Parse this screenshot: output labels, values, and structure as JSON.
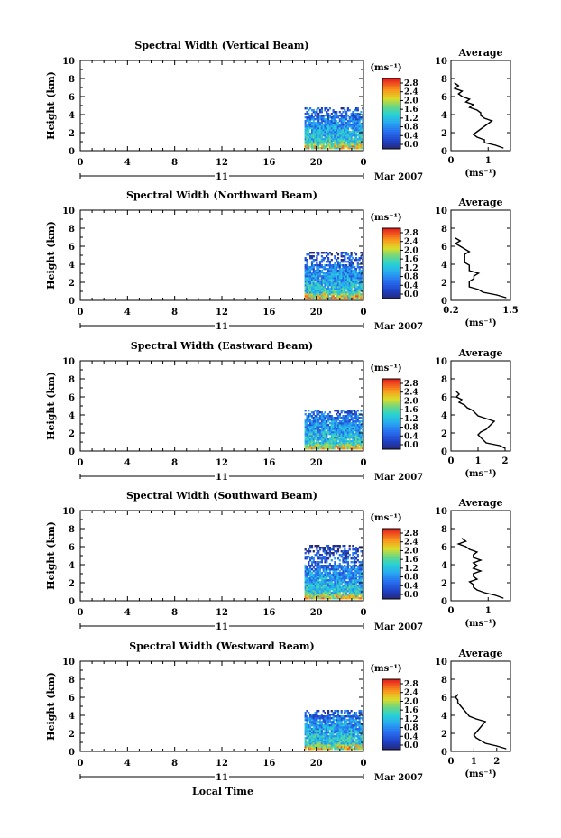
{
  "chart_data": [
    {
      "type": "heatmap",
      "title": "Spectral Width (Vertical Beam)",
      "ylabel": "Height (km)",
      "unit_label": "(ms⁻¹)",
      "xlim": [
        0,
        24
      ],
      "ylim": [
        0,
        10
      ],
      "x_ticks": [
        "0",
        "4",
        "8",
        "12",
        "16",
        "20",
        "0"
      ],
      "y_ticks": [
        "0",
        "2",
        "4",
        "6",
        "8",
        "10"
      ],
      "date_label": "11",
      "month_label": "Mar 2007",
      "colorbar_ticks": [
        "0.0",
        "0.4",
        "0.8",
        "1.2",
        "1.6",
        "2.0",
        "2.4",
        "2.8"
      ],
      "data_time_range": [
        19,
        24
      ],
      "data_height_range": [
        0.2,
        4.8
      ],
      "average": {
        "title": "Average",
        "xlabel": "(ms⁻¹)",
        "xlim": [
          0,
          1.6
        ],
        "x_ticks": [
          "0",
          "1"
        ],
        "height": [
          0.3,
          0.6,
          0.9,
          1.2,
          1.5,
          1.8,
          2.1,
          2.4,
          2.7,
          3.0,
          3.3,
          3.6,
          3.9,
          4.2,
          4.5,
          4.8,
          5.1,
          5.4,
          5.7,
          6.0,
          6.3,
          6.6,
          6.9,
          7.2,
          7.5
        ],
        "value": [
          1.4,
          1.2,
          0.9,
          0.9,
          0.7,
          0.6,
          0.7,
          0.8,
          0.9,
          1.0,
          1.1,
          0.9,
          0.8,
          0.8,
          0.7,
          0.5,
          0.6,
          0.4,
          0.5,
          0.3,
          0.2,
          0.3,
          0.1,
          0.2,
          0.1
        ]
      }
    },
    {
      "type": "heatmap",
      "title": "Spectral Width (Northward Beam)",
      "ylabel": "Height (km)",
      "unit_label": "(ms⁻¹)",
      "xlim": [
        0,
        24
      ],
      "ylim": [
        0,
        10
      ],
      "x_ticks": [
        "0",
        "4",
        "8",
        "12",
        "16",
        "20",
        "0"
      ],
      "y_ticks": [
        "0",
        "2",
        "4",
        "6",
        "8",
        "10"
      ],
      "date_label": "11",
      "month_label": "Mar 2007",
      "colorbar_ticks": [
        "0.0",
        "0.4",
        "0.8",
        "1.2",
        "1.6",
        "2.0",
        "2.4",
        "2.8"
      ],
      "data_time_range": [
        19,
        24
      ],
      "data_height_range": [
        0.2,
        5.4
      ],
      "average": {
        "title": "Average",
        "xlabel": "(ms⁻¹)",
        "xlim": [
          0.2,
          1.5
        ],
        "x_ticks": [
          "0.2",
          "1.5"
        ],
        "height": [
          0.3,
          0.6,
          0.9,
          1.2,
          1.5,
          1.8,
          2.1,
          2.4,
          2.7,
          3.0,
          3.3,
          3.6,
          3.9,
          4.2,
          4.5,
          4.8,
          5.1,
          5.4,
          5.7,
          6.0,
          6.3,
          6.6,
          6.9
        ],
        "value": [
          1.4,
          1.2,
          0.9,
          0.8,
          0.6,
          0.6,
          0.6,
          0.7,
          0.7,
          0.8,
          0.6,
          0.6,
          0.6,
          0.5,
          0.5,
          0.5,
          0.5,
          0.6,
          0.5,
          0.4,
          0.3,
          0.4,
          0.3
        ]
      }
    },
    {
      "type": "heatmap",
      "title": "Spectral Width (Eastward Beam)",
      "ylabel": "Height (km)",
      "unit_label": "(ms⁻¹)",
      "xlim": [
        0,
        24
      ],
      "ylim": [
        0,
        10
      ],
      "x_ticks": [
        "0",
        "4",
        "8",
        "12",
        "16",
        "20",
        "0"
      ],
      "y_ticks": [
        "0",
        "2",
        "4",
        "6",
        "8",
        "10"
      ],
      "date_label": "11",
      "month_label": "Mar 2007",
      "colorbar_ticks": [
        "0.0",
        "0.4",
        "0.8",
        "1.2",
        "1.6",
        "2.0",
        "2.4",
        "2.8"
      ],
      "data_time_range": [
        19,
        24
      ],
      "data_height_range": [
        0.2,
        4.6
      ],
      "average": {
        "title": "Average",
        "xlabel": "(ms⁻¹)",
        "xlim": [
          0,
          2.2
        ],
        "x_ticks": [
          "0",
          "1",
          "2"
        ],
        "height": [
          0.3,
          0.6,
          0.9,
          1.2,
          1.5,
          1.8,
          2.1,
          2.4,
          2.7,
          3.0,
          3.3,
          3.6,
          3.9,
          4.2,
          4.5,
          4.8,
          5.1,
          5.4,
          5.7,
          6.0,
          6.3,
          6.6
        ],
        "value": [
          2.0,
          1.8,
          1.3,
          1.2,
          1.1,
          1.0,
          1.1,
          1.3,
          1.4,
          1.5,
          1.6,
          1.3,
          1.0,
          0.9,
          0.8,
          0.6,
          0.5,
          0.3,
          0.4,
          0.2,
          0.3,
          0.2
        ]
      }
    },
    {
      "type": "heatmap",
      "title": "Spectral Width (Southward Beam)",
      "ylabel": "Height (km)",
      "unit_label": "(ms⁻¹)",
      "xlim": [
        0,
        24
      ],
      "ylim": [
        0,
        10
      ],
      "x_ticks": [
        "0",
        "4",
        "8",
        "12",
        "16",
        "20",
        "0"
      ],
      "y_ticks": [
        "0",
        "2",
        "4",
        "6",
        "8",
        "10"
      ],
      "date_label": "11",
      "month_label": "Mar 2007",
      "colorbar_ticks": [
        "0.0",
        "0.4",
        "0.8",
        "1.2",
        "1.6",
        "2.0",
        "2.4",
        "2.8"
      ],
      "data_time_range": [
        19,
        24
      ],
      "data_height_range": [
        0.2,
        6.2
      ],
      "average": {
        "title": "Average",
        "xlabel": "(ms⁻¹)",
        "xlim": [
          0,
          1.6
        ],
        "x_ticks": [
          "0",
          "1"
        ],
        "height": [
          0.3,
          0.6,
          0.9,
          1.2,
          1.5,
          1.8,
          2.1,
          2.4,
          2.7,
          3.0,
          3.3,
          3.6,
          3.9,
          4.2,
          4.5,
          4.8,
          5.1,
          5.4,
          5.7,
          6.0,
          6.3,
          6.6,
          6.9
        ],
        "value": [
          1.4,
          1.2,
          0.9,
          0.7,
          0.6,
          0.6,
          0.5,
          0.7,
          0.6,
          0.6,
          0.8,
          0.6,
          0.7,
          0.6,
          0.8,
          0.6,
          0.6,
          0.7,
          0.5,
          0.4,
          0.2,
          0.4,
          0.3
        ]
      }
    },
    {
      "type": "heatmap",
      "title": "Spectral Width (Westward Beam)",
      "ylabel": "Height (km)",
      "unit_label": "(ms⁻¹)",
      "xlim": [
        0,
        24
      ],
      "ylim": [
        0,
        10
      ],
      "x_ticks": [
        "0",
        "4",
        "8",
        "12",
        "16",
        "20",
        "0"
      ],
      "y_ticks": [
        "0",
        "2",
        "4",
        "6",
        "8",
        "10"
      ],
      "date_label": "11",
      "month_label": "Mar 2007",
      "xlabel": "Local Time",
      "colorbar_ticks": [
        "0.0",
        "0.4",
        "0.8",
        "1.2",
        "1.6",
        "2.0",
        "2.4",
        "2.8"
      ],
      "data_time_range": [
        19,
        24
      ],
      "data_height_range": [
        0.2,
        4.6
      ],
      "average": {
        "title": "Average",
        "xlabel": "(ms⁻¹)",
        "xlim": [
          0,
          2.6
        ],
        "x_ticks": [
          "0",
          "1",
          "2"
        ],
        "height": [
          0.3,
          0.6,
          0.9,
          1.2,
          1.5,
          1.8,
          2.1,
          2.4,
          2.7,
          3.0,
          3.3,
          3.6,
          3.9,
          4.2,
          4.5,
          4.8,
          5.1,
          5.4,
          5.7,
          6.0,
          6.3
        ],
        "value": [
          2.4,
          2.0,
          1.5,
          1.3,
          1.1,
          1.0,
          1.1,
          1.2,
          1.3,
          1.4,
          1.5,
          1.1,
          0.8,
          0.7,
          0.6,
          0.5,
          0.4,
          0.3,
          0.3,
          0.2,
          0.3
        ]
      }
    }
  ]
}
